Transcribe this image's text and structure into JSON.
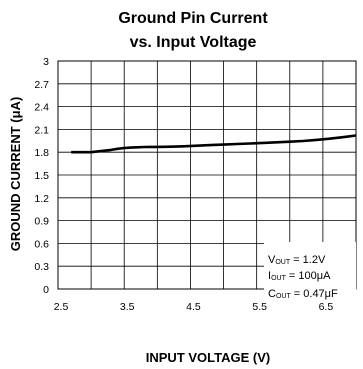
{
  "chart_data": {
    "type": "line",
    "title": "Ground Pin Current",
    "subtitle": "vs. Input Voltage",
    "xlabel": "INPUT VOLTAGE (V)",
    "ylabel": "GROUND CURRENT (μA)",
    "xlim": [
      2.5,
      7
    ],
    "ylim": [
      0,
      3
    ],
    "x_ticks": [
      2.5,
      3.5,
      4.5,
      5.5,
      6.5
    ],
    "x_tick_labels": [
      "2.5",
      "3.5",
      "4.5",
      "5.5",
      "6.5"
    ],
    "y_ticks": [
      0,
      0.3,
      0.6,
      0.9,
      1.2,
      1.5,
      1.8,
      2.1,
      2.4,
      2.7,
      3
    ],
    "y_tick_labels": [
      "0",
      "0.3",
      "0.6",
      "0.9",
      "1.2",
      "1.5",
      "1.8",
      "2.1",
      "2.4",
      "2.7",
      "3"
    ],
    "grid_x": [
      3,
      3.5,
      4,
      4.5,
      5,
      5.5,
      6,
      6.5
    ],
    "grid_y": [
      0.3,
      0.6,
      0.9,
      1.2,
      1.5,
      1.8,
      2.1,
      2.4,
      2.7
    ],
    "grid": true,
    "series": [
      {
        "x": [
          2.7,
          2.8,
          2.9,
          3.0,
          3.1,
          3.2,
          3.3,
          3.4,
          3.5,
          3.6,
          3.7,
          3.8,
          3.9,
          4.0,
          4.2,
          4.4,
          4.6,
          4.8,
          5.0,
          5.2,
          5.4,
          5.6,
          5.8,
          6.0,
          6.2,
          6.4,
          6.6,
          6.8,
          7.0
        ],
        "values": [
          1.8,
          1.8,
          1.8,
          1.8,
          1.81,
          1.82,
          1.83,
          1.845,
          1.855,
          1.86,
          1.865,
          1.868,
          1.87,
          1.87,
          1.872,
          1.878,
          1.885,
          1.893,
          1.9,
          1.908,
          1.915,
          1.922,
          1.93,
          1.938,
          1.948,
          1.962,
          1.978,
          1.998,
          2.02
        ],
        "color": "#000000"
      }
    ],
    "annotation": {
      "vout": {
        "main": "V",
        "sub": "OUT",
        "rest": " = 1.2V"
      },
      "iout": {
        "main": "I",
        "sub": "OUT",
        "rest": " = 100μA"
      },
      "cout": {
        "main": "C",
        "sub": "OUT",
        "rest": " = 0.47μF"
      }
    }
  }
}
